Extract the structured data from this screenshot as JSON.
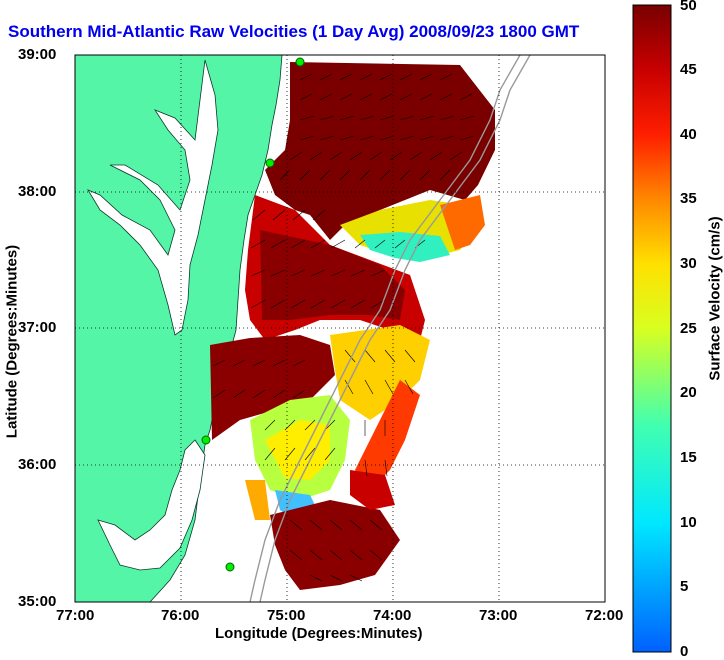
{
  "title": "Southern Mid-Atlantic Raw Velocities (1 Day Avg) 2008/09/23 1800 GMT",
  "x_axis": {
    "label": "Longitude (Degrees:Minutes)",
    "ticks": [
      "77:00",
      "76:00",
      "75:00",
      "74:00",
      "73:00",
      "72:00"
    ]
  },
  "y_axis": {
    "label": "Latitude (Degrees:Minutes)",
    "ticks": [
      "39:00",
      "38:00",
      "37:00",
      "36:00",
      "35:00"
    ]
  },
  "colorbar": {
    "label": "Surface Velocity (cm/s)",
    "ticks": [
      "0",
      "5",
      "10",
      "15",
      "20",
      "25",
      "30",
      "35",
      "40",
      "45",
      "50"
    ],
    "range": [
      0,
      50
    ]
  },
  "colors": {
    "land": "#55f5a8",
    "title": "#0000ee",
    "max_velocity": "#800000",
    "min_velocity": "#0066ff",
    "station_marker": "#00ee00"
  },
  "map": {
    "extent_lon": [
      -77,
      -72
    ],
    "extent_lat": [
      35,
      39
    ],
    "grid": true
  }
}
